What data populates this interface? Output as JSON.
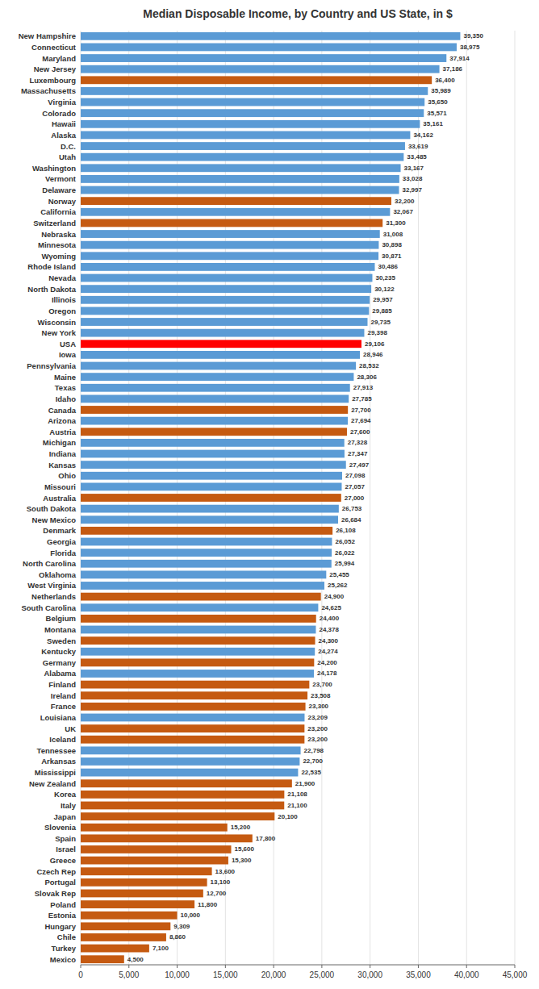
{
  "chart_data": {
    "type": "bar",
    "orientation": "horizontal",
    "title": "Median Disposable Income, by Country and US State, in $",
    "categories": [
      "New Hampshire",
      "Connecticut",
      "Maryland",
      "New Jersey",
      "Luxembourg",
      "Massachusetts",
      "Virginia",
      "Colorado",
      "Hawaii",
      "Alaska",
      "D.C.",
      "Utah",
      "Washington",
      "Vermont",
      "Delaware",
      "Norway",
      "California",
      "Switzerland",
      "Nebraska",
      "Minnesota",
      "Wyoming",
      "Rhode Island",
      "Nevada",
      "North Dakota",
      "Illinois",
      "Oregon",
      "Wisconsin",
      "New York",
      "USA",
      "Iowa",
      "Pennsylvania",
      "Maine",
      "Texas",
      "Idaho",
      "Canada",
      "Arizona",
      "Austria",
      "Michigan",
      "Indiana",
      "Kansas",
      "Ohio",
      "Missouri",
      "Australia",
      "South Dakota",
      "New Mexico",
      "Denmark",
      "Georgia",
      "Florida",
      "North Carolina",
      "Oklahoma",
      "West Virginia",
      "Netherlands",
      "South Carolina",
      "Belgium",
      "Montana",
      "Sweden",
      "Kentucky",
      "Germany",
      "Alabama",
      "Finland",
      "Ireland",
      "France",
      "Louisiana",
      "UK",
      "Iceland",
      "Tennessee",
      "Arkansas",
      "Mississippi",
      "New Zealand",
      "Korea",
      "Italy",
      "Japan",
      "Slovenia",
      "Spain",
      "Israel",
      "Greece",
      "Czech Rep",
      "Portugal",
      "Slovak Rep",
      "Poland",
      "Estonia",
      "Hungary",
      "Chile",
      "Turkey",
      "Mexico"
    ],
    "values": [
      39350,
      38975,
      37914,
      37186,
      36400,
      35989,
      35650,
      35571,
      35161,
      34162,
      33619,
      33485,
      33167,
      33028,
      32997,
      32200,
      32067,
      31300,
      31008,
      30898,
      30871,
      30486,
      30235,
      30122,
      29957,
      29885,
      29735,
      29398,
      29106,
      28946,
      28532,
      28306,
      27913,
      27785,
      27700,
      27694,
      27600,
      27328,
      27347,
      27497,
      27098,
      27057,
      27000,
      26753,
      26684,
      26108,
      26052,
      26022,
      25994,
      25455,
      25262,
      24900,
      24625,
      24400,
      24378,
      24300,
      24274,
      24200,
      24178,
      23700,
      23508,
      23300,
      23209,
      23200,
      23200,
      22798,
      22700,
      22535,
      21900,
      21108,
      21100,
      20100,
      15200,
      17800,
      15600,
      15300,
      13600,
      13100,
      12700,
      11800,
      10000,
      9309,
      8860,
      7100,
      4500
    ],
    "value_labels": [
      "39,350",
      "38,975",
      "37,914",
      "37,186",
      "36,400",
      "35,989",
      "35,650",
      "35,571",
      "35,161",
      "34,162",
      "33,619",
      "33,485",
      "33,167",
      "33,028",
      "32,997",
      "32,200",
      "32,067",
      "31,300",
      "31,008",
      "30,898",
      "30,871",
      "30,486",
      "30,235",
      "30,122",
      "29,957",
      "29,885",
      "29,735",
      "29,398",
      "29,106",
      "28,946",
      "28,532",
      "28,306",
      "27,913",
      "27,785",
      "27,700",
      "27,694",
      "27,600",
      "27,328",
      "27,347",
      "27,497",
      "27,098",
      "27,057",
      "27,000",
      "26,753",
      "26,684",
      "26,108",
      "26,052",
      "26,022",
      "25,994",
      "25,455",
      "25,262",
      "24,900",
      "24,625",
      "24,400",
      "24,378",
      "24,300",
      "24,274",
      "24,200",
      "24,178",
      "23,700",
      "23,508",
      "23,300",
      "23,209",
      "23,200",
      "23,200",
      "22,798",
      "22,700",
      "22,535",
      "21,900",
      "21,108",
      "21,100",
      "20,100",
      "15,200",
      "17,800",
      "15,600",
      "15,300",
      "13,600",
      "13,100",
      "12,700",
      "11,800",
      "10,000",
      "9,309",
      "8,860",
      "7,100",
      "4,500"
    ],
    "colors": [
      "#5B9BD5",
      "#5B9BD5",
      "#5B9BD5",
      "#5B9BD5",
      "#C55A11",
      "#5B9BD5",
      "#5B9BD5",
      "#5B9BD5",
      "#5B9BD5",
      "#5B9BD5",
      "#5B9BD5",
      "#5B9BD5",
      "#5B9BD5",
      "#5B9BD5",
      "#5B9BD5",
      "#C55A11",
      "#5B9BD5",
      "#C55A11",
      "#5B9BD5",
      "#5B9BD5",
      "#5B9BD5",
      "#5B9BD5",
      "#5B9BD5",
      "#5B9BD5",
      "#5B9BD5",
      "#5B9BD5",
      "#5B9BD5",
      "#5B9BD5",
      "#FF0000",
      "#5B9BD5",
      "#5B9BD5",
      "#5B9BD5",
      "#5B9BD5",
      "#5B9BD5",
      "#C55A11",
      "#5B9BD5",
      "#C55A11",
      "#5B9BD5",
      "#5B9BD5",
      "#5B9BD5",
      "#5B9BD5",
      "#5B9BD5",
      "#C55A11",
      "#5B9BD5",
      "#5B9BD5",
      "#C55A11",
      "#5B9BD5",
      "#5B9BD5",
      "#5B9BD5",
      "#5B9BD5",
      "#5B9BD5",
      "#C55A11",
      "#5B9BD5",
      "#C55A11",
      "#5B9BD5",
      "#C55A11",
      "#5B9BD5",
      "#C55A11",
      "#5B9BD5",
      "#C55A11",
      "#C55A11",
      "#C55A11",
      "#5B9BD5",
      "#C55A11",
      "#C55A11",
      "#5B9BD5",
      "#5B9BD5",
      "#5B9BD5",
      "#C55A11",
      "#C55A11",
      "#C55A11",
      "#C55A11",
      "#C55A11",
      "#C55A11",
      "#C55A11",
      "#C55A11",
      "#C55A11",
      "#C55A11",
      "#C55A11",
      "#C55A11",
      "#C55A11",
      "#C55A11",
      "#C55A11",
      "#C55A11",
      "#C55A11"
    ],
    "xlim": [
      0,
      45000
    ],
    "xticks": [
      0,
      {
        "value": 5000,
        "label": "5,000"
      },
      {
        "value": 10000,
        "label": "10,000"
      },
      {
        "value": 15000,
        "label": "15,000"
      },
      {
        "value": 20000,
        "label": "20,000"
      },
      {
        "value": 25000,
        "label": "25,000"
      },
      {
        "value": 30000,
        "label": "30,000"
      },
      {
        "value": 35000,
        "label": "35,000"
      },
      {
        "value": 40000,
        "label": "40,000"
      },
      {
        "value": 45000,
        "label": "45,000"
      }
    ],
    "grid": true,
    "data_labels": true
  }
}
